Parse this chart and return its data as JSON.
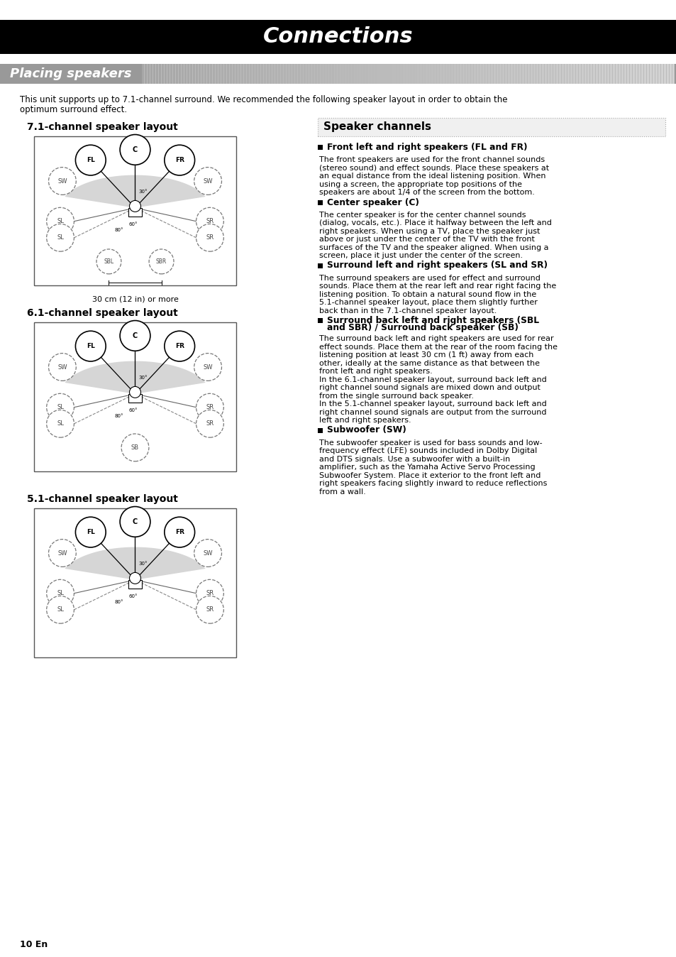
{
  "title": "Connections",
  "subtitle": "Placing speakers",
  "intro_text": "This unit supports up to 7.1-channel surround. We recommended the following speaker layout in order to obtain the\noptimum surround effect.",
  "layout_71_title": "7.1-channel speaker layout",
  "layout_61_title": "6.1-channel speaker layout",
  "layout_51_title": "5.1-channel speaker layout",
  "caption_71": "30 cm (12 in) or more",
  "speaker_channels_title": "Speaker channels",
  "sections": [
    {
      "heading": "Front left and right speakers (FL and FR)",
      "body": "The front speakers are used for the front channel sounds\n(stereo sound) and effect sounds. Place these speakers at\nan equal distance from the ideal listening position. When\nusing a screen, the appropriate top positions of the\nspeakers are about 1/4 of the screen from the bottom."
    },
    {
      "heading": "Center speaker (C)",
      "body": "The center speaker is for the center channel sounds\n(dialog, vocals, etc.). Place it halfway between the left and\nright speakers. When using a TV, place the speaker just\nabove or just under the center of the TV with the front\nsurfaces of the TV and the speaker aligned. When using a\nscreen, place it just under the center of the screen."
    },
    {
      "heading": "Surround left and right speakers (SL and SR)",
      "body": "The surround speakers are used for effect and surround\nsounds. Place them at the rear left and rear right facing the\nlistening position. To obtain a natural sound flow in the\n5.1-channel speaker layout, place them slightly further\nback than in the 7.1-channel speaker layout."
    },
    {
      "heading": "Surround back left and right speakers (SBL\nand SBR) / Surround back speaker (SB)",
      "body": "The surround back left and right speakers are used for rear\neffect sounds. Place them at the rear of the room facing the\nlistening position at least 30 cm (1 ft) away from each\nother, ideally at the same distance as that between the\nfront left and right speakers.\nIn the 6.1-channel speaker layout, surround back left and\nright channel sound signals are mixed down and output\nfrom the single surround back speaker.\nIn the 5.1-channel speaker layout, surround back left and\nright channel sound signals are output from the surround\nleft and right speakers."
    },
    {
      "heading": "Subwoofer (SW)",
      "body": "The subwoofer speaker is used for bass sounds and low-\nfrequency effect (LFE) sounds included in Dolby Digital\nand DTS signals. Use a subwoofer with a built-in\namplifier, such as the Yamaha Active Servo Processing\nSubwoofer System. Place it exterior to the front left and\nright speakers facing slightly inward to reduce reflections\nfrom a wall."
    }
  ],
  "page_number": "10 En",
  "bg_color": "#ffffff",
  "title_bg": "#000000",
  "title_color": "#ffffff"
}
